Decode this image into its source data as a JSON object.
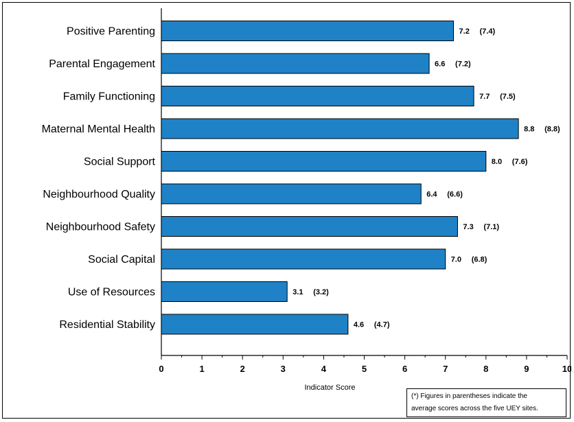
{
  "chart_data": {
    "type": "bar",
    "orientation": "horizontal",
    "categories": [
      "Positive Parenting",
      "Parental Engagement",
      "Family Functioning",
      "Maternal Mental Health",
      "Social Support",
      "Neighbourhood Quality",
      "Neighbourhood Safety",
      "Social Capital",
      "Use of Resources",
      "Residential Stability"
    ],
    "values": [
      7.2,
      6.6,
      7.7,
      8.8,
      8.0,
      6.4,
      7.3,
      7.0,
      3.1,
      4.6
    ],
    "value_labels": [
      "7.2",
      "6.6",
      "7.7",
      "8.8",
      "8.0",
      "6.4",
      "7.3",
      "7.0",
      "3.1",
      "4.6"
    ],
    "average_labels": [
      "(7.4)",
      "(7.2)",
      "(7.5)",
      "(8.8)",
      "(7.6)",
      "(6.6)",
      "(7.1)",
      "(6.8)",
      "(3.2)",
      "(4.7)"
    ],
    "xlabel": "Indicator Score",
    "ylabel": "",
    "xlim": [
      0,
      10
    ],
    "ticks": [
      "0",
      "1",
      "2",
      "3",
      "4",
      "5",
      "6",
      "7",
      "8",
      "9",
      "10"
    ],
    "grid": false,
    "bar_color": "#1f82c7"
  },
  "note": {
    "line1": "(*) Figures in parentheses indicate the",
    "line2": "average scores across the five UEY sites."
  }
}
